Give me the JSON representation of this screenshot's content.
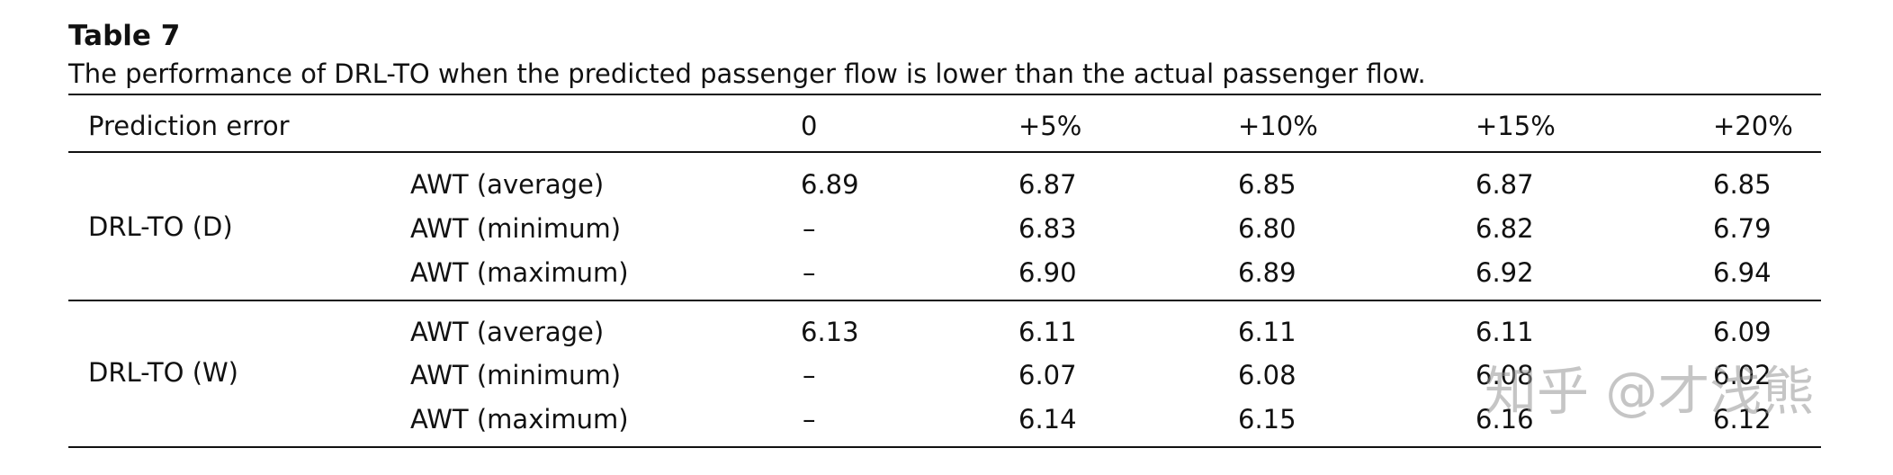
{
  "table": {
    "label": "Table 7",
    "caption": "The performance of DRL-TO when the predicted passenger flow is lower than the actual passenger flow.",
    "header": [
      "Prediction error",
      "",
      "0",
      "+5%",
      "+10%",
      "+15%",
      "+20%"
    ],
    "groups": [
      {
        "name": "DRL-TO (D)",
        "rows": [
          {
            "metric": "AWT (average)",
            "values": [
              "6.89",
              "6.87",
              "6.85",
              "6.87",
              "6.85"
            ]
          },
          {
            "metric": "AWT (minimum)",
            "values": [
              "–",
              "6.83",
              "6.80",
              "6.82",
              "6.79"
            ]
          },
          {
            "metric": "AWT (maximum)",
            "values": [
              "–",
              "6.90",
              "6.89",
              "6.92",
              "6.94"
            ]
          }
        ]
      },
      {
        "name": "DRL-TO (W)",
        "rows": [
          {
            "metric": "AWT (average)",
            "values": [
              "6.13",
              "6.11",
              "6.11",
              "6.11",
              "6.09"
            ]
          },
          {
            "metric": "AWT (minimum)",
            "values": [
              "–",
              "6.07",
              "6.08",
              "6.08",
              "6.02"
            ]
          },
          {
            "metric": "AWT (maximum)",
            "values": [
              "–",
              "6.14",
              "6.15",
              "6.16",
              "6.12"
            ]
          }
        ]
      }
    ]
  },
  "watermark": "知乎 @才浅熊"
}
